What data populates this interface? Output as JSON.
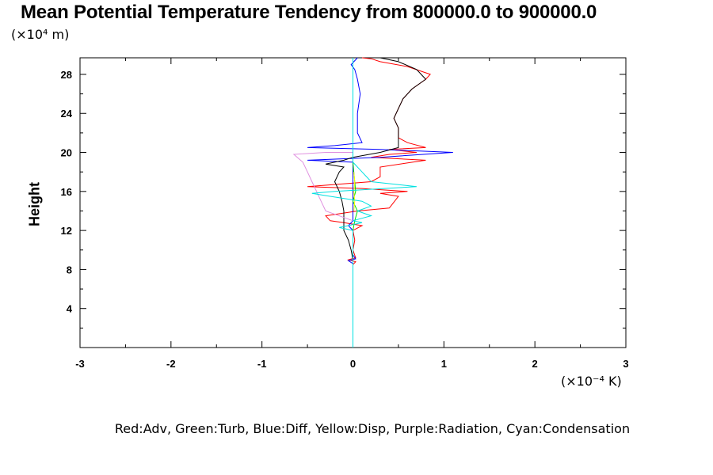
{
  "chart_data": {
    "type": "line",
    "title": "Mean Potential Temperature Tendency from 800000.0 to 900000.0",
    "ylabel": "Height",
    "y_unit": "(×10⁴ m)",
    "x_unit": "(×10⁻⁴ K)",
    "xlim": [
      -3,
      3
    ],
    "ylim": [
      0,
      29.7
    ],
    "x_ticks": [
      "-3",
      "-2",
      "-1",
      "0",
      "1",
      "2",
      "3"
    ],
    "y_ticks": [
      "4",
      "8",
      "12",
      "16",
      "20",
      "24",
      "28"
    ],
    "grid": false,
    "legend_text": "Red:Adv,  Green:Turb,  Blue:Diff,  Yellow:Disp,  Purple:Radiation,  Cyan:Condensation",
    "series": [
      {
        "color": "#ff0000",
        "points": [
          [
            0,
            6.5
          ],
          [
            0,
            8.5
          ],
          [
            0.03,
            8.8
          ],
          [
            -0.05,
            9
          ],
          [
            0.03,
            9.2
          ],
          [
            0,
            10
          ],
          [
            0.02,
            11
          ],
          [
            0,
            12
          ],
          [
            0.1,
            12.5
          ],
          [
            -0.1,
            12.8
          ],
          [
            -0.25,
            13
          ],
          [
            -0.3,
            13.5
          ],
          [
            0.05,
            14
          ],
          [
            0.4,
            14.3
          ],
          [
            0.5,
            15.5
          ],
          [
            0.3,
            15.8
          ],
          [
            0.6,
            16
          ],
          [
            0.1,
            16.3
          ],
          [
            -0.5,
            16.5
          ],
          [
            0.2,
            17
          ],
          [
            0.3,
            17.5
          ],
          [
            0.3,
            18.5
          ],
          [
            0.8,
            19.2
          ],
          [
            0.2,
            19.5
          ],
          [
            0.4,
            19.8
          ],
          [
            0.7,
            20
          ],
          [
            0.4,
            20.3
          ],
          [
            0.8,
            20.5
          ],
          [
            0.6,
            21
          ],
          [
            0.5,
            21.5
          ],
          [
            0.5,
            22.5
          ],
          [
            0.45,
            23.5
          ],
          [
            0.5,
            24.5
          ],
          [
            0.55,
            25.5
          ],
          [
            0.65,
            26.5
          ],
          [
            0.8,
            27.5
          ],
          [
            0.85,
            28
          ],
          [
            0.6,
            28.8
          ],
          [
            0.3,
            29.3
          ],
          [
            0.2,
            29.6
          ],
          [
            0.1,
            29.7
          ]
        ]
      },
      {
        "color": "#0000ff",
        "points": [
          [
            0,
            7
          ],
          [
            0,
            8.6
          ],
          [
            -0.05,
            8.9
          ],
          [
            0.03,
            9.1
          ],
          [
            0,
            9.5
          ],
          [
            0,
            12
          ],
          [
            -0.05,
            12.5
          ],
          [
            0,
            13
          ],
          [
            0,
            19
          ],
          [
            -0.5,
            19.2
          ],
          [
            0.3,
            19.5
          ],
          [
            1.1,
            20
          ],
          [
            0.3,
            20.3
          ],
          [
            -0.5,
            20.5
          ],
          [
            -0.2,
            20.7
          ],
          [
            0.1,
            21
          ],
          [
            0.05,
            22
          ],
          [
            0.05,
            24
          ],
          [
            0.08,
            26
          ],
          [
            0.05,
            27.5
          ],
          [
            0.02,
            28.5
          ],
          [
            -0.02,
            29
          ],
          [
            0.05,
            29.7
          ]
        ]
      },
      {
        "color": "#000000",
        "points": [
          [
            0,
            6.8
          ],
          [
            0,
            9
          ],
          [
            -0.02,
            10
          ],
          [
            -0.05,
            11
          ],
          [
            -0.1,
            12
          ],
          [
            -0.1,
            13
          ],
          [
            -0.1,
            14
          ],
          [
            -0.12,
            15
          ],
          [
            -0.15,
            16
          ],
          [
            -0.2,
            17
          ],
          [
            -0.15,
            18
          ],
          [
            -0.1,
            18.5
          ],
          [
            -0.3,
            18.8
          ],
          [
            -0.1,
            19.2
          ],
          [
            0,
            19.5
          ],
          [
            0.3,
            20
          ],
          [
            0.5,
            20.5
          ],
          [
            0.5,
            21.5
          ],
          [
            0.5,
            22.5
          ],
          [
            0.45,
            23.5
          ],
          [
            0.5,
            24.5
          ],
          [
            0.55,
            25.5
          ],
          [
            0.65,
            26.5
          ],
          [
            0.8,
            27.5
          ],
          [
            0.7,
            28.5
          ],
          [
            0.5,
            29.3
          ],
          [
            0.3,
            29.7
          ]
        ]
      },
      {
        "color": "#00e000",
        "points": [
          [
            0,
            12
          ],
          [
            0.02,
            13
          ],
          [
            0.05,
            14
          ],
          [
            0,
            15
          ],
          [
            0.03,
            16
          ],
          [
            0.02,
            17
          ],
          [
            0.01,
            18
          ],
          [
            0,
            19
          ],
          [
            0,
            20
          ]
        ]
      },
      {
        "color": "#ffff00",
        "points": [
          [
            0.01,
            14
          ],
          [
            0.02,
            15
          ],
          [
            0.01,
            16
          ],
          [
            0.02,
            17
          ],
          [
            0.01,
            18
          ]
        ]
      },
      {
        "color": "#e090e0",
        "points": [
          [
            0,
            13
          ],
          [
            -0.3,
            14
          ],
          [
            -0.35,
            15
          ],
          [
            -0.4,
            16
          ],
          [
            -0.45,
            17
          ],
          [
            -0.5,
            18
          ],
          [
            -0.55,
            19
          ],
          [
            -0.65,
            19.8
          ],
          [
            -0.3,
            20
          ],
          [
            0,
            20
          ]
        ]
      },
      {
        "color": "#00e0e0",
        "points": [
          [
            0,
            0
          ],
          [
            0,
            12
          ],
          [
            -0.15,
            12.3
          ],
          [
            0.1,
            12.8
          ],
          [
            0,
            13
          ],
          [
            0.2,
            13.5
          ],
          [
            0.05,
            14
          ],
          [
            0.2,
            14.5
          ],
          [
            0.1,
            15
          ],
          [
            -0.25,
            15.5
          ],
          [
            -0.45,
            15.8
          ],
          [
            -0.2,
            16
          ],
          [
            0.7,
            16.5
          ],
          [
            0.2,
            17
          ],
          [
            0.1,
            18
          ],
          [
            0,
            19
          ],
          [
            0,
            29.7
          ]
        ]
      }
    ]
  }
}
